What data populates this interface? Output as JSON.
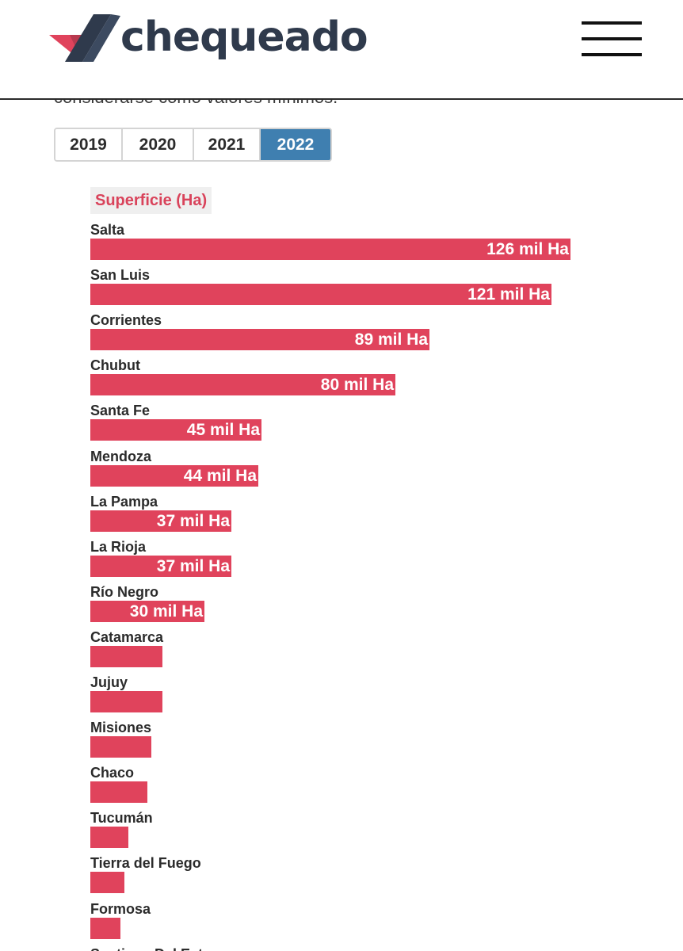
{
  "header": {
    "logo_text": "chequeado",
    "logo_icon": "checkmark-logo-icon",
    "menu_icon": "hamburger-menu-icon"
  },
  "article": {
    "partial_text": "considerarse como valores mínimos."
  },
  "year_tabs": {
    "items": [
      "2019",
      "2020",
      "2021",
      "2022"
    ],
    "selected": "2022"
  },
  "chart_data": {
    "type": "bar",
    "orientation": "horizontal",
    "series_label": "Superficie (Ha)",
    "series": [
      {
        "name": "Superficie (Ha)",
        "values": [
          126,
          121,
          89,
          80,
          45,
          44,
          37,
          37,
          30,
          19,
          19,
          16,
          15,
          10,
          9,
          8,
          null
        ]
      }
    ],
    "categories": [
      "Salta",
      "San Luis",
      "Corrientes",
      "Chubut",
      "Santa Fe",
      "Mendoza",
      "La Pampa",
      "La Rioja",
      "Río Negro",
      "Catamarca",
      "Jujuy",
      "Misiones",
      "Chaco",
      "Tucumán",
      "Tierra del Fuego",
      "Formosa",
      "Santiago Del Estero"
    ],
    "value_labels": [
      "126 mil Ha",
      "121 mil Ha",
      "89 mil Ha",
      "80 mil Ha",
      "45 mil Ha",
      "44 mil Ha",
      "37 mil Ha",
      "37 mil Ha",
      "30 mil Ha",
      "",
      "",
      "",
      "",
      "",
      "",
      "",
      ""
    ],
    "unit": "mil Ha",
    "xlim": [
      0,
      126
    ],
    "grid": false,
    "legend": "none"
  },
  "colors": {
    "bar": "#e0435c",
    "series_label_text": "#d9435b",
    "series_label_bg": "#efefef",
    "active_tab": "#3f7fb0",
    "logo_text": "#2f3a4c",
    "logo_red": "#e0435c",
    "logo_dark": "#2f3a4c"
  }
}
